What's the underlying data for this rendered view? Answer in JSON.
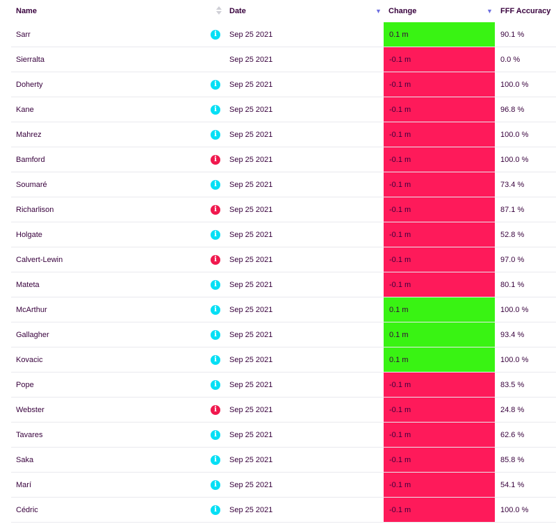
{
  "header": {
    "name": "Name",
    "date": "Date",
    "change": "Change",
    "accuracy": "FFF Accuracy"
  },
  "colors": {
    "up": "#39f313",
    "down": "#fe1a5a",
    "info_neutral": "#05dff5",
    "info_alert": "#f0194e"
  },
  "rows": [
    {
      "name": "Sarr",
      "info": "info-icon-cyan",
      "date": "Sep 25 2021",
      "change": "0.1 m",
      "direction": "up",
      "accuracy": "90.1 %"
    },
    {
      "name": "Sierralta",
      "info": "none",
      "date": "Sep 25 2021",
      "change": "-0.1 m",
      "direction": "down",
      "accuracy": "0.0 %"
    },
    {
      "name": "Doherty",
      "info": "info-icon-cyan",
      "date": "Sep 25 2021",
      "change": "-0.1 m",
      "direction": "down",
      "accuracy": "100.0 %"
    },
    {
      "name": "Kane",
      "info": "info-icon-cyan",
      "date": "Sep 25 2021",
      "change": "-0.1 m",
      "direction": "down",
      "accuracy": "96.8 %"
    },
    {
      "name": "Mahrez",
      "info": "info-icon-cyan",
      "date": "Sep 25 2021",
      "change": "-0.1 m",
      "direction": "down",
      "accuracy": "100.0 %"
    },
    {
      "name": "Bamford",
      "info": "info-icon-red",
      "date": "Sep 25 2021",
      "change": "-0.1 m",
      "direction": "down",
      "accuracy": "100.0 %"
    },
    {
      "name": "Soumaré",
      "info": "info-icon-cyan",
      "date": "Sep 25 2021",
      "change": "-0.1 m",
      "direction": "down",
      "accuracy": "73.4 %"
    },
    {
      "name": "Richarlison",
      "info": "info-icon-red",
      "date": "Sep 25 2021",
      "change": "-0.1 m",
      "direction": "down",
      "accuracy": "87.1 %"
    },
    {
      "name": "Holgate",
      "info": "info-icon-cyan",
      "date": "Sep 25 2021",
      "change": "-0.1 m",
      "direction": "down",
      "accuracy": "52.8 %"
    },
    {
      "name": "Calvert-Lewin",
      "info": "info-icon-red",
      "date": "Sep 25 2021",
      "change": "-0.1 m",
      "direction": "down",
      "accuracy": "97.0 %"
    },
    {
      "name": "Mateta",
      "info": "info-icon-cyan",
      "date": "Sep 25 2021",
      "change": "-0.1 m",
      "direction": "down",
      "accuracy": "80.1 %"
    },
    {
      "name": "McArthur",
      "info": "info-icon-cyan",
      "date": "Sep 25 2021",
      "change": "0.1 m",
      "direction": "up",
      "accuracy": "100.0 %"
    },
    {
      "name": "Gallagher",
      "info": "info-icon-cyan",
      "date": "Sep 25 2021",
      "change": "0.1 m",
      "direction": "up",
      "accuracy": "93.4 %"
    },
    {
      "name": "Kovacic",
      "info": "info-icon-cyan",
      "date": "Sep 25 2021",
      "change": "0.1 m",
      "direction": "up",
      "accuracy": "100.0 %"
    },
    {
      "name": "Pope",
      "info": "info-icon-cyan",
      "date": "Sep 25 2021",
      "change": "-0.1 m",
      "direction": "down",
      "accuracy": "83.5 %"
    },
    {
      "name": "Webster",
      "info": "info-icon-red",
      "date": "Sep 25 2021",
      "change": "-0.1 m",
      "direction": "down",
      "accuracy": "24.8 %"
    },
    {
      "name": "Tavares",
      "info": "info-icon-cyan",
      "date": "Sep 25 2021",
      "change": "-0.1 m",
      "direction": "down",
      "accuracy": "62.6 %"
    },
    {
      "name": "Saka",
      "info": "info-icon-cyan",
      "date": "Sep 25 2021",
      "change": "-0.1 m",
      "direction": "down",
      "accuracy": "85.8 %"
    },
    {
      "name": "Marí",
      "info": "info-icon-cyan",
      "date": "Sep 25 2021",
      "change": "-0.1 m",
      "direction": "down",
      "accuracy": "54.1 %"
    },
    {
      "name": "Cédric",
      "info": "info-icon-cyan",
      "date": "Sep 25 2021",
      "change": "-0.1 m",
      "direction": "down",
      "accuracy": "100.0 %"
    }
  ]
}
